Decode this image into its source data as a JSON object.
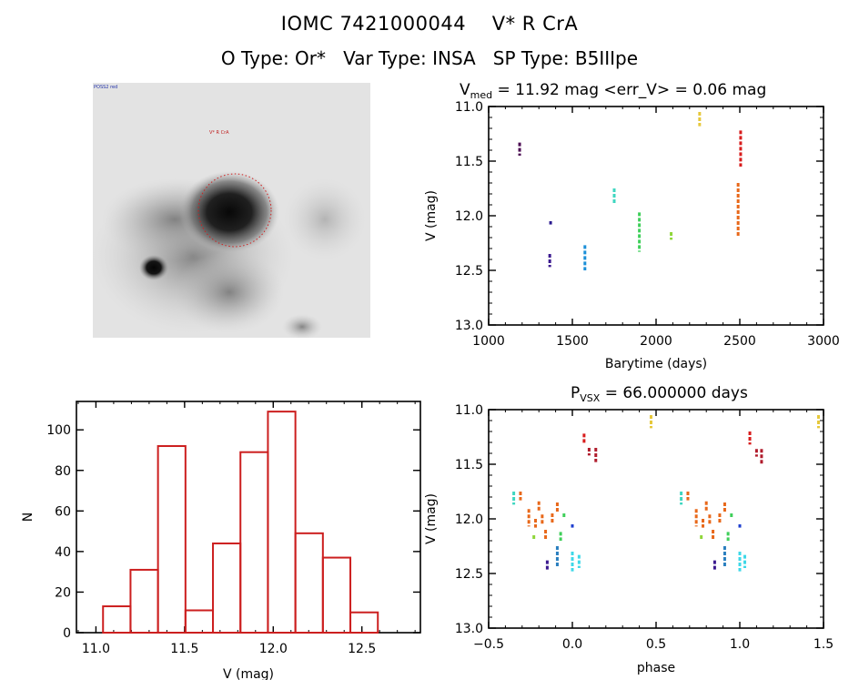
{
  "header": {
    "title": "IOMC 7421000044    V* R CrA",
    "subtitle": "O Type: Or*   Var Type: INSA   SP Type: B5IIIpe"
  },
  "image_panel": {
    "description": "grayscale sky image with dotted red aperture circle"
  },
  "chart_data": [
    {
      "type": "scatter",
      "title_main": "V",
      "title_sub": "med",
      "title_rest": " = 11.92 mag <err_V> = 0.06 mag",
      "xlabel": "Barytime (days)",
      "ylabel": "V (mag)",
      "xlim": [
        1000,
        3000
      ],
      "ylim": [
        13.0,
        11.0
      ],
      "xticks": [
        1000,
        1500,
        2000,
        2500,
        3000
      ],
      "xtick_labels": [
        "1000",
        "1500",
        "2000",
        "2500",
        "3000"
      ],
      "yticks": [
        11.0,
        11.5,
        12.0,
        12.5,
        13.0
      ],
      "ytick_labels": [
        "11.0",
        "11.5",
        "12.0",
        "12.5",
        "13.0"
      ],
      "series": [
        {
          "name": "s1",
          "color": "#4b0a52",
          "x": 1185,
          "y": [
            11.33,
            11.45
          ]
        },
        {
          "name": "s2",
          "color": "#2a1a8f",
          "x": 1370,
          "y": [
            12.05,
            12.08
          ]
        },
        {
          "name": "s3",
          "color": "#3b1a8f",
          "x": 1365,
          "y": [
            12.35,
            12.47
          ]
        },
        {
          "name": "s4",
          "color": "#1b8fd8",
          "x": 1575,
          "y": [
            12.27,
            12.5
          ]
        },
        {
          "name": "s5",
          "color": "#3fd6c0",
          "x": 1750,
          "y": [
            11.75,
            11.9
          ]
        },
        {
          "name": "s6",
          "color": "#3fcf5a",
          "x": 1900,
          "y": [
            11.97,
            12.33
          ]
        },
        {
          "name": "s7",
          "color": "#8fd63a",
          "x": 2090,
          "y": [
            12.15,
            12.22
          ]
        },
        {
          "name": "s8",
          "color": "#e6c83a",
          "x": 2260,
          "y": [
            11.05,
            11.18
          ]
        },
        {
          "name": "s9",
          "color": "#d81c1c",
          "x": 2505,
          "y": [
            11.22,
            11.55
          ]
        },
        {
          "name": "s10",
          "color": "#e8681a",
          "x": 2490,
          "y": [
            11.7,
            12.2
          ]
        }
      ]
    },
    {
      "type": "bar",
      "title": "",
      "xlabel": "V (mag)",
      "ylabel": "N",
      "xlim": [
        10.89,
        12.83
      ],
      "ylim": [
        0,
        114
      ],
      "xticks": [
        11.0,
        11.5,
        12.0,
        12.5
      ],
      "xtick_labels": [
        "11.0",
        "11.5",
        "12.0",
        "12.5"
      ],
      "yticks": [
        0,
        20,
        40,
        60,
        80,
        100
      ],
      "ytick_labels": [
        "0",
        "20",
        "40",
        "60",
        "80",
        "100"
      ],
      "bin_edges": [
        11.04,
        11.195,
        11.35,
        11.505,
        11.66,
        11.815,
        11.97,
        12.125,
        12.28,
        12.435,
        12.59
      ],
      "values": [
        13,
        31,
        92,
        11,
        44,
        89,
        109,
        49,
        37,
        10
      ],
      "color": "#cc1f1f"
    },
    {
      "type": "scatter",
      "title_main": "P",
      "title_sub": "VSX",
      "title_rest": " = 66.000000 days",
      "xlabel": "phase",
      "ylabel": "V (mag)",
      "xlim": [
        -0.5,
        1.5
      ],
      "ylim": [
        13.0,
        11.0
      ],
      "xticks": [
        -0.5,
        0.0,
        0.5,
        1.0,
        1.5
      ],
      "xtick_labels": [
        "−0.5",
        "0.0",
        "0.5",
        "1.0",
        "1.5"
      ],
      "yticks": [
        11.0,
        11.5,
        12.0,
        12.5,
        13.0
      ],
      "ytick_labels": [
        "11.0",
        "11.5",
        "12.0",
        "12.5",
        "13.0"
      ],
      "series": [
        {
          "name": "p1",
          "color": "#e6c83a",
          "x": 0.47,
          "y": [
            11.05,
            11.17
          ]
        },
        {
          "name": "p2",
          "color": "#d81c1c",
          "x": 0.07,
          "y": [
            11.22,
            11.32
          ]
        },
        {
          "name": "p3",
          "color": "#b01c2c",
          "x": 0.1,
          "y": [
            11.35,
            11.42
          ]
        },
        {
          "name": "p4",
          "color": "#b01c2c",
          "x": 0.14,
          "y": [
            11.35,
            11.48
          ]
        },
        {
          "name": "p5",
          "color": "#3fd6c0",
          "x": -0.35,
          "y": [
            11.75,
            11.87
          ]
        },
        {
          "name": "p6",
          "color": "#e8681a",
          "x": -0.31,
          "y": [
            11.75,
            11.83
          ]
        },
        {
          "name": "p7",
          "color": "#e8681a",
          "x": -0.26,
          "y": [
            11.91,
            12.07
          ]
        },
        {
          "name": "p8",
          "color": "#e8681a",
          "x": -0.22,
          "y": [
            12.0,
            12.08
          ]
        },
        {
          "name": "p9",
          "color": "#e8681a",
          "x": -0.2,
          "y": [
            11.84,
            11.93
          ]
        },
        {
          "name": "p10",
          "color": "#e8681a",
          "x": -0.18,
          "y": [
            11.96,
            12.06
          ]
        },
        {
          "name": "p11",
          "color": "#e8681a",
          "x": -0.16,
          "y": [
            12.1,
            12.19
          ]
        },
        {
          "name": "p12",
          "color": "#e8681a",
          "x": -0.12,
          "y": [
            11.95,
            12.05
          ]
        },
        {
          "name": "p13",
          "color": "#e8681a",
          "x": -0.09,
          "y": [
            11.85,
            11.95
          ]
        },
        {
          "name": "p14",
          "color": "#3fcf5a",
          "x": -0.07,
          "y": [
            12.12,
            12.2
          ]
        },
        {
          "name": "p15",
          "color": "#3fcf5a",
          "x": -0.05,
          "y": [
            11.95,
            12.0
          ]
        },
        {
          "name": "p16",
          "color": "#8fd63a",
          "x": -0.23,
          "y": [
            12.15,
            12.2
          ]
        },
        {
          "name": "p17",
          "color": "#1e3fcf",
          "x": 0.0,
          "y": [
            12.05,
            12.08
          ]
        },
        {
          "name": "p18",
          "color": "#3b1a8f",
          "x": -0.15,
          "y": [
            12.38,
            12.47
          ]
        },
        {
          "name": "p19",
          "color": "#2a7fbf",
          "x": -0.09,
          "y": [
            12.25,
            12.45
          ]
        },
        {
          "name": "p20",
          "color": "#3ed8e8",
          "x": 0.0,
          "y": [
            12.3,
            12.48
          ]
        },
        {
          "name": "p21",
          "color": "#3ed8e8",
          "x": 0.04,
          "y": [
            12.33,
            12.45
          ]
        },
        {
          "name": "p22",
          "color": "#e6c83a",
          "x": 1.47,
          "y": [
            11.05,
            11.17
          ]
        },
        {
          "name": "p23",
          "color": "#d81c1c",
          "x": 1.06,
          "y": [
            11.2,
            11.32
          ]
        },
        {
          "name": "p24",
          "color": "#b01c2c",
          "x": 1.1,
          "y": [
            11.36,
            11.43
          ]
        },
        {
          "name": "p25",
          "color": "#b01c2c",
          "x": 1.13,
          "y": [
            11.36,
            11.5
          ]
        },
        {
          "name": "p26",
          "color": "#3fd6c0",
          "x": 0.65,
          "y": [
            11.75,
            11.87
          ]
        },
        {
          "name": "p27",
          "color": "#e8681a",
          "x": 0.69,
          "y": [
            11.75,
            11.83
          ]
        },
        {
          "name": "p28",
          "color": "#e8681a",
          "x": 0.74,
          "y": [
            11.91,
            12.07
          ]
        },
        {
          "name": "p29",
          "color": "#e8681a",
          "x": 0.78,
          "y": [
            12.0,
            12.08
          ]
        },
        {
          "name": "p30",
          "color": "#e8681a",
          "x": 0.8,
          "y": [
            11.84,
            11.93
          ]
        },
        {
          "name": "p31",
          "color": "#e8681a",
          "x": 0.82,
          "y": [
            11.96,
            12.06
          ]
        },
        {
          "name": "p32",
          "color": "#e8681a",
          "x": 0.84,
          "y": [
            12.1,
            12.19
          ]
        },
        {
          "name": "p33",
          "color": "#e8681a",
          "x": 0.88,
          "y": [
            11.95,
            12.05
          ]
        },
        {
          "name": "p34",
          "color": "#e8681a",
          "x": 0.91,
          "y": [
            11.85,
            11.95
          ]
        },
        {
          "name": "p35",
          "color": "#3fcf5a",
          "x": 0.93,
          "y": [
            12.12,
            12.2
          ]
        },
        {
          "name": "p36",
          "color": "#3fcf5a",
          "x": 0.95,
          "y": [
            11.95,
            12.0
          ]
        },
        {
          "name": "p37",
          "color": "#8fd63a",
          "x": 0.77,
          "y": [
            12.15,
            12.2
          ]
        },
        {
          "name": "p38",
          "color": "#1e3fcf",
          "x": 1.0,
          "y": [
            12.05,
            12.08
          ]
        },
        {
          "name": "p39",
          "color": "#3b1a8f",
          "x": 0.85,
          "y": [
            12.38,
            12.47
          ]
        },
        {
          "name": "p40",
          "color": "#2a7fbf",
          "x": 0.91,
          "y": [
            12.25,
            12.45
          ]
        },
        {
          "name": "p41",
          "color": "#3ed8e8",
          "x": 1.0,
          "y": [
            12.3,
            12.48
          ]
        },
        {
          "name": "p42",
          "color": "#3ed8e8",
          "x": 1.03,
          "y": [
            12.33,
            12.45
          ]
        }
      ]
    }
  ]
}
